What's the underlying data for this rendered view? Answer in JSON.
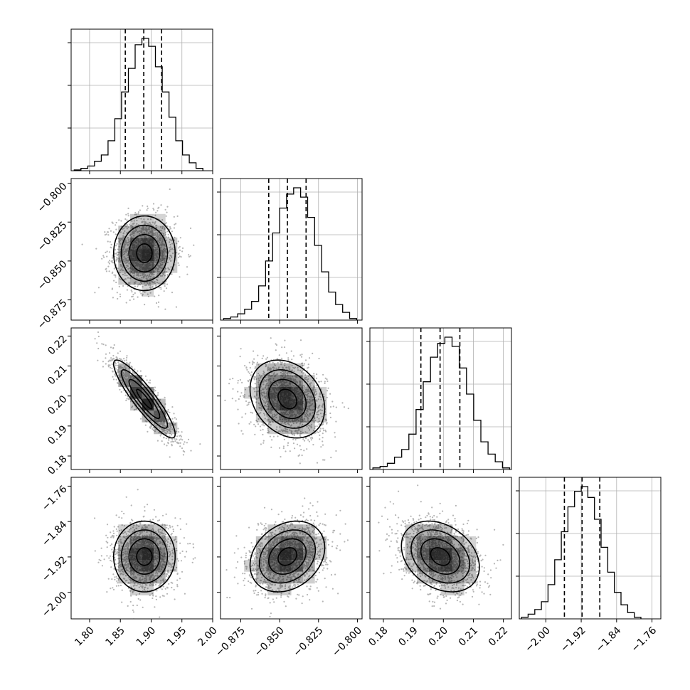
{
  "chart_data": {
    "type": "corner",
    "grid": true,
    "n_params": 4,
    "parameters": [
      {
        "name": "",
        "range": [
          1.77,
          2.0
        ],
        "quantiles": [
          1.858,
          1.888,
          1.917
        ],
        "histogram": {
          "bin_edges": [
            1.775,
            1.786,
            1.797,
            1.808,
            1.819,
            1.83,
            1.841,
            1.852,
            1.863,
            1.874,
            1.885,
            1.896,
            1.907,
            1.918,
            1.929,
            1.94,
            1.951,
            1.962,
            1.973,
            1.984
          ],
          "counts": [
            0.5,
            1.5,
            3,
            6,
            10,
            19,
            33,
            50,
            65,
            80,
            84,
            79,
            66,
            50,
            34,
            19,
            10,
            5,
            1.5
          ]
        },
        "x_ticks": [
          1.8,
          1.85,
          1.9,
          1.95,
          2.0
        ],
        "x_tick_labels": [
          "1.80",
          "1.85",
          "1.90",
          "1.95",
          "2.00"
        ],
        "y_ticks": [
          -0.875,
          -0.85,
          -0.825,
          -0.8
        ],
        "y_tick_labels": [
          "−0.875",
          "−0.850",
          "−0.825",
          "−0.800"
        ],
        "mean": 1.889,
        "sd": 0.025
      },
      {
        "name": "",
        "range": [
          -0.888,
          -0.797
        ],
        "quantiles": [
          -0.857,
          -0.845,
          -0.833
        ],
        "histogram": {
          "bin_edges": [
            -0.886,
            -0.8815,
            -0.877,
            -0.8725,
            -0.868,
            -0.8635,
            -0.859,
            -0.8545,
            -0.85,
            -0.8455,
            -0.841,
            -0.8365,
            -0.832,
            -0.8275,
            -0.823,
            -0.8185,
            -0.814,
            -0.8095,
            -0.805,
            -0.8005
          ],
          "counts": [
            1,
            2,
            4,
            7,
            12,
            22,
            38,
            56,
            72,
            81,
            85,
            79,
            66,
            48,
            31,
            18,
            10,
            5,
            1
          ]
        },
        "x_ticks": [
          -0.875,
          -0.85,
          -0.825,
          -0.8
        ],
        "x_tick_labels": [
          "−0.875",
          "−0.850",
          "−0.825",
          "−0.800"
        ],
        "y_ticks": [
          0.18,
          0.19,
          0.2,
          0.21,
          0.22
        ],
        "y_tick_labels": [
          "0.18",
          "0.19",
          "0.20",
          "0.21",
          "0.22"
        ],
        "mean": -0.845,
        "sd": 0.012
      },
      {
        "name": "",
        "range": [
          0.1755,
          0.2227
        ],
        "quantiles": [
          0.1925,
          0.1989,
          0.2055
        ],
        "histogram": {
          "bin_edges": [
            0.1765,
            0.1789,
            0.1813,
            0.1837,
            0.1861,
            0.1885,
            0.1909,
            0.1933,
            0.1957,
            0.1981,
            0.2005,
            0.2029,
            0.2053,
            0.2077,
            0.2101,
            0.2125,
            0.2149,
            0.2173,
            0.2197,
            0.2221
          ],
          "counts": [
            1,
            2,
            4,
            8,
            13,
            23,
            39,
            57,
            73,
            82,
            86,
            80,
            66,
            49,
            32,
            18,
            10,
            5,
            1
          ]
        },
        "x_ticks": [
          0.18,
          0.19,
          0.2,
          0.21,
          0.22
        ],
        "x_tick_labels": [
          "0.18",
          "0.19",
          "0.20",
          "0.21",
          "0.22"
        ],
        "y_ticks": [
          -2.0,
          -1.92,
          -1.84,
          -1.76
        ],
        "y_tick_labels": [
          "−2.00",
          "−1.92",
          "−1.84",
          "−1.76"
        ],
        "mean": 0.199,
        "sd": 0.0065
      },
      {
        "name": "",
        "range": [
          -2.06,
          -1.74
        ],
        "quantiles": [
          -1.958,
          -1.918,
          -1.878
        ],
        "histogram": {
          "bin_edges": [
            -2.055,
            -2.04,
            -2.025,
            -2.01,
            -1.995,
            -1.98,
            -1.965,
            -1.95,
            -1.935,
            -1.92,
            -1.905,
            -1.89,
            -1.875,
            -1.86,
            -1.845,
            -1.83,
            -1.815,
            -1.8,
            -1.785
          ],
          "counts": [
            1,
            3,
            6,
            11,
            22,
            38,
            56,
            72,
            82,
            85,
            78,
            64,
            46,
            30,
            17,
            9,
            4,
            1
          ]
        },
        "x_ticks": [
          -2.0,
          -1.92,
          -1.84,
          -1.76
        ],
        "x_tick_labels": [
          "−2.00",
          "−1.92",
          "−1.84",
          "−1.76"
        ],
        "mean": -1.919,
        "sd": 0.04
      }
    ],
    "correlations": [
      {
        "row": 1,
        "col": 0,
        "rho": 0.0
      },
      {
        "row": 2,
        "col": 0,
        "rho": -0.9
      },
      {
        "row": 2,
        "col": 1,
        "rho": -0.25
      },
      {
        "row": 3,
        "col": 0,
        "rho": 0.0
      },
      {
        "row": 3,
        "col": 1,
        "rho": 0.25
      },
      {
        "row": 3,
        "col": 2,
        "rho": -0.3
      }
    ],
    "contour_levels_sigma": [
      0.5,
      1.0,
      1.5,
      2.0
    ],
    "colors": {
      "axes": "#000000",
      "grid": "#b0b0b0",
      "samples": "#b5b5b5",
      "density": "#000000"
    }
  }
}
